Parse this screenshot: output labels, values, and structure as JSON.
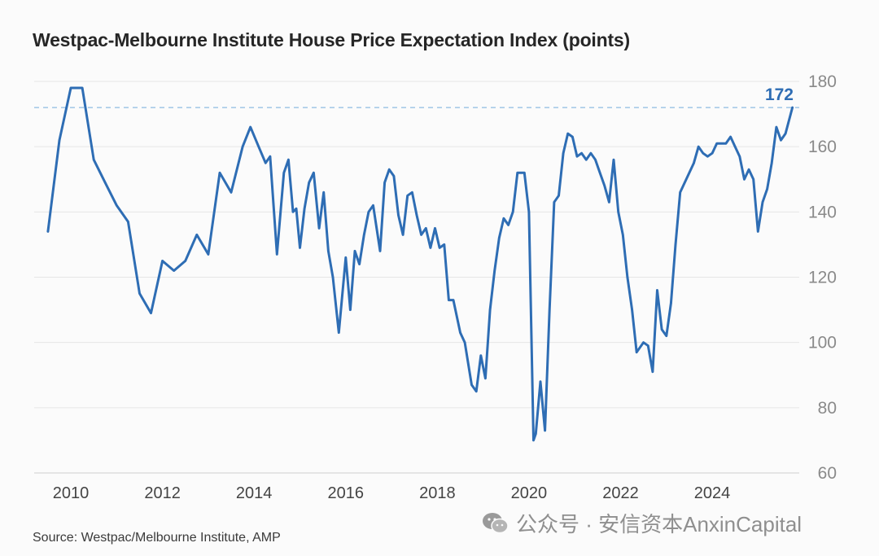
{
  "chart_data": {
    "type": "line",
    "title": "Westpac-Melbourne Institute House Price Expectation Index (points)",
    "xlabel": "",
    "ylabel": "",
    "xlim": [
      2009.2,
      2025.9
    ],
    "ylim": [
      60,
      180
    ],
    "y_ticks": [
      180,
      160,
      140,
      120,
      100,
      80,
      60
    ],
    "x_ticks": [
      2010,
      2012,
      2014,
      2016,
      2018,
      2020,
      2022,
      2024
    ],
    "x_tick_labels": [
      "2010",
      "2012",
      "2014",
      "2016",
      "2018",
      "2020",
      "2022",
      "2024"
    ],
    "y_tick_labels": [
      "180",
      "160",
      "140",
      "120",
      "100",
      "80",
      "60"
    ],
    "grid": true,
    "color": "#2e6db4",
    "reference_line": {
      "value": 172,
      "label": "172",
      "style": "dashed"
    },
    "series": [
      {
        "name": "House Price Expectation Index",
        "x": [
          2009.5,
          2009.75,
          2010.0,
          2010.25,
          2010.5,
          2010.75,
          2011.0,
          2011.25,
          2011.5,
          2011.75,
          2012.0,
          2012.25,
          2012.5,
          2012.75,
          2013.0,
          2013.25,
          2013.5,
          2013.75,
          2013.92,
          2014.1,
          2014.25,
          2014.35,
          2014.5,
          2014.65,
          2014.75,
          2014.85,
          2014.92,
          2015.0,
          2015.1,
          2015.2,
          2015.3,
          2015.42,
          2015.52,
          2015.62,
          2015.72,
          2015.85,
          2016.0,
          2016.1,
          2016.2,
          2016.3,
          2016.4,
          2016.5,
          2016.6,
          2016.75,
          2016.85,
          2016.95,
          2017.05,
          2017.15,
          2017.25,
          2017.35,
          2017.45,
          2017.55,
          2017.65,
          2017.75,
          2017.85,
          2017.95,
          2018.05,
          2018.15,
          2018.25,
          2018.35,
          2018.5,
          2018.6,
          2018.75,
          2018.85,
          2018.95,
          2019.05,
          2019.15,
          2019.25,
          2019.35,
          2019.45,
          2019.55,
          2019.65,
          2019.75,
          2019.9,
          2020.0,
          2020.1,
          2020.15,
          2020.25,
          2020.35,
          2020.45,
          2020.55,
          2020.65,
          2020.75,
          2020.85,
          2020.95,
          2021.05,
          2021.15,
          2021.25,
          2021.35,
          2021.45,
          2021.55,
          2021.65,
          2021.75,
          2021.85,
          2021.95,
          2022.05,
          2022.15,
          2022.25,
          2022.35,
          2022.5,
          2022.6,
          2022.7,
          2022.8,
          2022.9,
          2023.0,
          2023.1,
          2023.2,
          2023.3,
          2023.4,
          2023.5,
          2023.6,
          2023.7,
          2023.8,
          2023.9,
          2024.0,
          2024.1,
          2024.2,
          2024.3,
          2024.4,
          2024.5,
          2024.6,
          2024.7,
          2024.8,
          2024.9,
          2025.0,
          2025.1,
          2025.2,
          2025.3,
          2025.4,
          2025.5,
          2025.6,
          2025.75
        ],
        "values": [
          134,
          162,
          178,
          178,
          156,
          149,
          142,
          137,
          115,
          109,
          125,
          122,
          125,
          133,
          127,
          152,
          146,
          160,
          166,
          160,
          155,
          157,
          127,
          152,
          156,
          140,
          141,
          129,
          141,
          149,
          152,
          135,
          146,
          128,
          120,
          103,
          126,
          110,
          128,
          124,
          133,
          140,
          142,
          128,
          149,
          153,
          151,
          139,
          133,
          145,
          146,
          139,
          133,
          135,
          129,
          135,
          129,
          130,
          113,
          113,
          103,
          100,
          87,
          85,
          96,
          89,
          110,
          122,
          132,
          138,
          136,
          140,
          152,
          152,
          140,
          70,
          72,
          88,
          73,
          110,
          143,
          145,
          158,
          164,
          163,
          157,
          158,
          156,
          158,
          156,
          152,
          148,
          143,
          156,
          140,
          133,
          120,
          110,
          97,
          100,
          99,
          91,
          116,
          104,
          102,
          112,
          130,
          146,
          149,
          152,
          155,
          160,
          158,
          157,
          158,
          161,
          161,
          161,
          163,
          160,
          157,
          150,
          153,
          150,
          134,
          143,
          147,
          155,
          166,
          162,
          164,
          172
        ]
      }
    ]
  },
  "source": "Source: Westpac/Melbourne Institute, AMP",
  "watermark": "公众号 · 安信资本AnxinCapital"
}
